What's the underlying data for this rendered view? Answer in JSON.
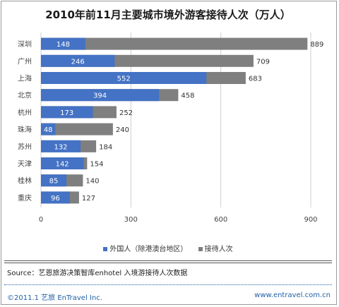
{
  "title": "2010年前11月主要城市境外游客接待人次（万人）",
  "chart_data": {
    "type": "bar",
    "orientation": "horizontal",
    "categories": [
      "深圳",
      "广州",
      "上海",
      "北京",
      "杭州",
      "珠海",
      "苏州",
      "天津",
      "桂林",
      "重庆"
    ],
    "series": [
      {
        "name": "外国人（除港澳台地区）",
        "values": [
          148,
          246,
          552,
          394,
          173,
          48,
          132,
          142,
          85,
          96
        ],
        "color": "#4472c4"
      },
      {
        "name": "接待人次",
        "values": [
          889,
          709,
          683,
          458,
          252,
          240,
          184,
          154,
          140,
          127
        ],
        "color": "#7f7f7f"
      }
    ],
    "xlim": [
      0,
      900
    ],
    "xticks": [
      0,
      300,
      600,
      900
    ],
    "legend_position": "bottom"
  },
  "source": "Source：艺恩旅游决策智库enhotel  入境游接待人次数据",
  "footer": {
    "left": "©2011.1 艺旅 EnTravel Inc.",
    "right": "www.entravel.com.cn"
  }
}
